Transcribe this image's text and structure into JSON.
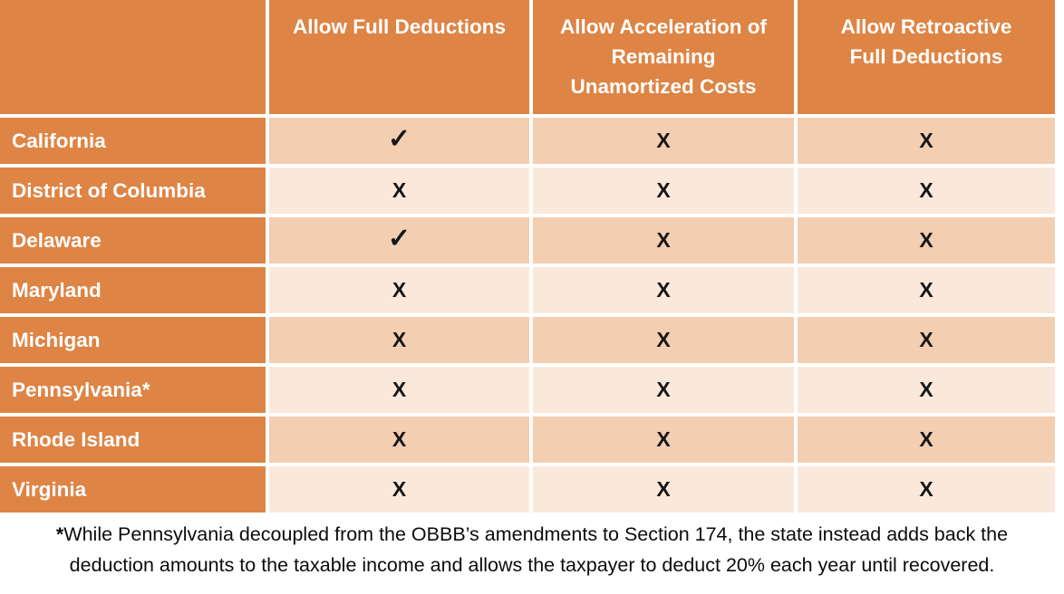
{
  "chart_data": {
    "type": "table",
    "columns": [
      "",
      "Allow Full Deductions",
      "Allow Acceleration of\nRemaining\nUnamortized Costs",
      "Allow Retroactive\nFull Deductions"
    ],
    "rows": [
      {
        "state": "California",
        "marks": [
          "✓",
          "X",
          "X"
        ]
      },
      {
        "state": "District of Columbia",
        "marks": [
          "X",
          "X",
          "X"
        ]
      },
      {
        "state": "Delaware",
        "marks": [
          "✓",
          "X",
          "X"
        ]
      },
      {
        "state": "Maryland",
        "marks": [
          "X",
          "X",
          "X"
        ]
      },
      {
        "state": "Michigan",
        "marks": [
          "X",
          "X",
          "X"
        ]
      },
      {
        "state": "Pennsylvania*",
        "marks": [
          "X",
          "X",
          "X"
        ]
      },
      {
        "state": "Rhode Island",
        "marks": [
          "X",
          "X",
          "X"
        ]
      },
      {
        "state": "Virginia",
        "marks": [
          "X",
          "X",
          "X"
        ]
      }
    ]
  },
  "footnote": {
    "asterisk": "*",
    "line1": "While Pennsylvania decoupled from the OBBB’s amendments to Section 174, the state instead adds back the",
    "line2": "deduction amounts to the taxable income and allows the taxpayer to deduct 20% each year until recovered."
  },
  "colors": {
    "header_orange": "#DE8445",
    "row_dark": "#F3CEB1",
    "row_light": "#FAE9DB",
    "gridline_white": "#FFFFFF",
    "mark_black": "#161616"
  }
}
